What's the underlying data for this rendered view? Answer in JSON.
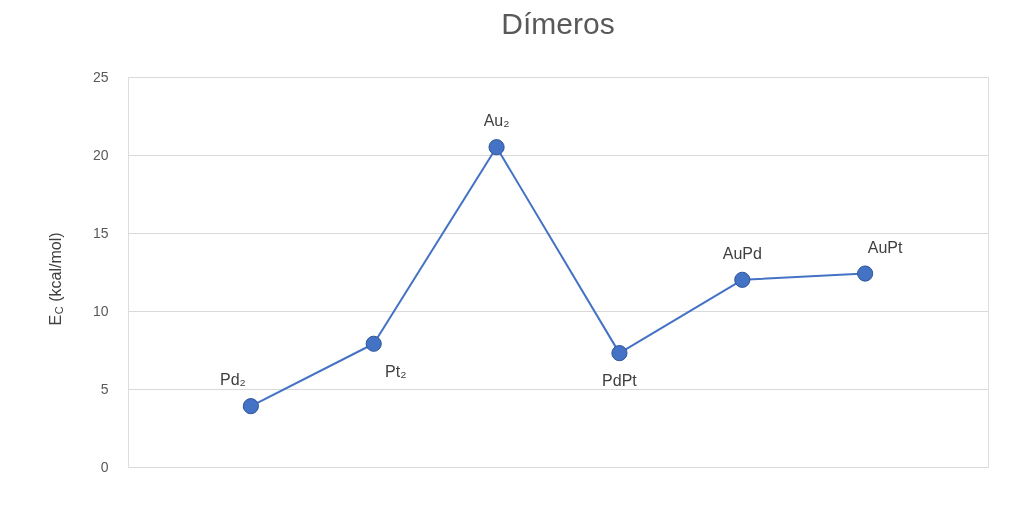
{
  "chart_data": {
    "type": "line",
    "title": "Dímeros",
    "ylabel": "E$_{C}$ (kcal/mol)",
    "categories": [
      null,
      null,
      null,
      null,
      null,
      null
    ],
    "series": [
      {
        "color": "#4472c4",
        "values": [
          3.9,
          7.9,
          20.5,
          7.3,
          12.0,
          12.4
        ]
      }
    ],
    "annotations": [
      "Pd₂",
      "Pt₂",
      "Au₂",
      "PdPt",
      "AuPd",
      "AuPt"
    ],
    "ylim": [
      0,
      25
    ],
    "yticks": [
      0,
      5,
      10,
      15,
      20,
      25
    ],
    "grid": "y",
    "marker": "circle",
    "line_style": "solid",
    "tick_labels": "y"
  }
}
